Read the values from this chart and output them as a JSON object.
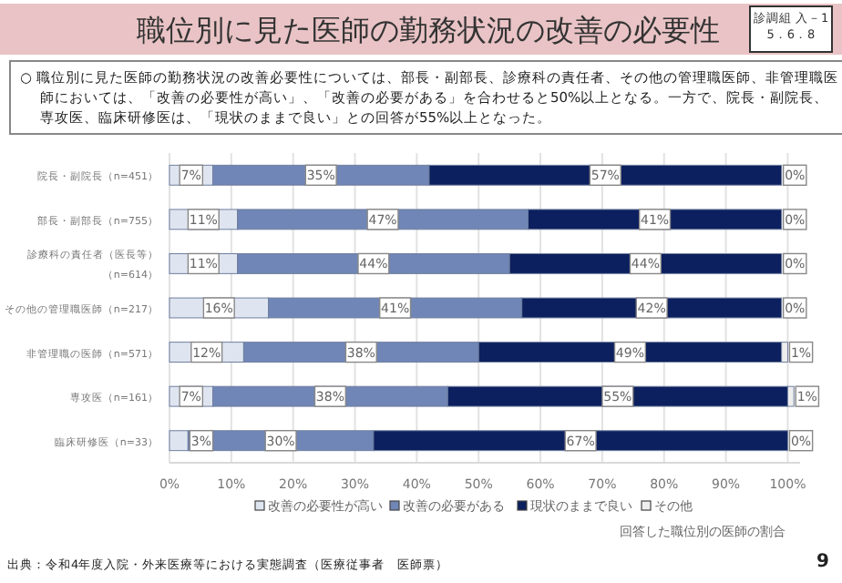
{
  "chart_data": {
    "type": "bar",
    "orientation": "horizontal",
    "stacked": true,
    "title": "職位別に見た医師の勤務状況の改善の必要性",
    "subtitle": "○ 職位別に見た医師の勤務状況の改善必要性については、部長・副部長、診療科の責任者、その他の管理職医師、非管理職医師においては、「改善の必要性が高い」、「改善の必要がある」を合わせると50%以上となる。一方で、院長・副院長、専攻医、臨床研修医は、「現状のままで良い」との回答が55%以上となった。",
    "xlabel": "回答した職位別の医師の割合",
    "annotations": [
      "診調組 入－1",
      "5．6．8",
      "出典：令和4年度入院・外来医療等における実態調査（医療従事者　医師票）",
      "9"
    ],
    "categories": [
      "院長・副院長（n=451）",
      "部長・副部長（n=755）",
      "診療科の責任者（医長等）（n=614）",
      "その他の管理職医師（n=217）",
      "非管理職の医師（n=571）",
      "専攻医（n=161）",
      "臨床研修医（n=33）"
    ],
    "series": [
      {
        "name": "改善の必要性が高い",
        "color": "#dfe5f0",
        "values": [
          7,
          11,
          11,
          16,
          12,
          7,
          3
        ],
        "value_labels": [
          "7%",
          "11%",
          "11%",
          "16%",
          "12%",
          "7%",
          "3%"
        ]
      },
      {
        "name": "改善の必要がある",
        "color": "#7086b6",
        "values": [
          35,
          47,
          44,
          41,
          38,
          38,
          30
        ],
        "value_labels": [
          "35%",
          "47%",
          "44%",
          "41%",
          "38%",
          "38%",
          "30%"
        ]
      },
      {
        "name": "現状のままで良い",
        "color": "#0c1f5e",
        "values": [
          57,
          41,
          44,
          42,
          49,
          55,
          67
        ],
        "value_labels": [
          "57%",
          "41%",
          "44%",
          "42%",
          "49%",
          "55%",
          "67%"
        ]
      },
      {
        "name": "その他",
        "color": "#eeeeee",
        "values": [
          0,
          0,
          0,
          0,
          1,
          1,
          0
        ],
        "value_labels": [
          "0%",
          "0%",
          "0%",
          "0%",
          "1%",
          "1%",
          "0%"
        ]
      }
    ],
    "xlim": [
      0,
      102
    ],
    "xticks": [
      {
        "value": 0,
        "label": "0%"
      },
      {
        "value": 10,
        "label": "10%"
      },
      {
        "value": 20,
        "label": "20%"
      },
      {
        "value": 30,
        "label": "30%"
      },
      {
        "value": 40,
        "label": "40%"
      },
      {
        "value": 50,
        "label": "50%"
      },
      {
        "value": 60,
        "label": "60%"
      },
      {
        "value": 70,
        "label": "70%"
      },
      {
        "value": 80,
        "label": "80%"
      },
      {
        "value": 90,
        "label": "90%"
      },
      {
        "value": 100,
        "label": "100%"
      }
    ],
    "grid": "x",
    "legend": "bottom"
  }
}
